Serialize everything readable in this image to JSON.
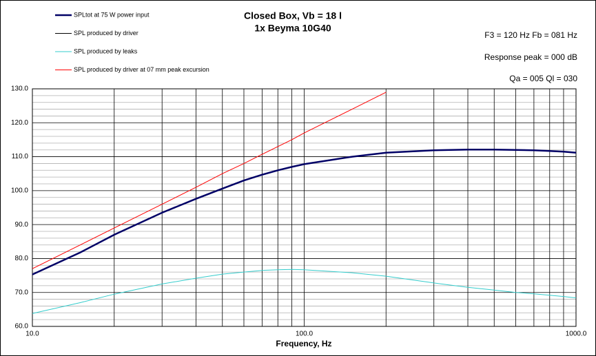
{
  "chart_data": {
    "type": "line",
    "title": "Closed Box, Vb = 18 l",
    "subtitle": "1x Beyma 10G40",
    "annotations": [
      "F3 = 120 Hz  Fb = 081 Hz",
      "Response peak = 000 dB",
      "Qa = 005  Ql = 030"
    ],
    "xlabel": "Frequency, Hz",
    "log_x": true,
    "grid": true,
    "x": [
      10,
      15,
      20,
      30,
      40,
      50,
      60,
      70,
      80,
      90,
      100,
      150,
      200,
      300,
      400,
      500,
      600,
      700,
      800,
      900,
      1000
    ],
    "series": [
      {
        "name": "SPLtot at 75 W power input",
        "color": "#000066",
        "values": [
          75.3,
          81.8,
          87,
          93.5,
          97.6,
          100.6,
          103,
          104.7,
          106,
          107,
          107.8,
          110,
          111.2,
          111.9,
          112.1,
          112.1,
          112,
          111.9,
          111.7,
          111.5,
          111.2
        ]
      },
      {
        "name": "SPL produced by driver",
        "color": "#000000",
        "values": [
          75.3,
          81.8,
          87,
          93.5,
          97.6,
          100.6,
          103,
          104.7,
          106,
          107,
          107.8,
          110,
          111.2,
          111.9,
          112.1,
          112.1,
          112,
          111.9,
          111.7,
          111.5,
          111.2
        ]
      },
      {
        "name": "SPL produced by leaks",
        "color": "#33cccc",
        "values": [
          63.8,
          67,
          69.5,
          72.5,
          74.2,
          75.4,
          76,
          76.5,
          76.7,
          76.8,
          76.7,
          75.8,
          74.8,
          72.8,
          71.5,
          70.7,
          70,
          69.6,
          69.2,
          68.8,
          68.4
        ]
      },
      {
        "name": "SPL produced by driver at 07 mm peak excursion",
        "color": "#ff0000",
        "values": [
          77,
          84,
          89,
          96,
          101,
          105,
          108,
          110.7,
          113,
          115,
          117,
          124,
          129,
          null,
          null,
          null,
          null,
          null,
          null,
          null,
          null
        ]
      }
    ],
    "xlim": [
      10,
      1000
    ],
    "ylim": [
      60,
      130
    ],
    "xticks": [
      {
        "value": 10,
        "label": "10.0"
      },
      {
        "value": 100,
        "label": "100.0"
      },
      {
        "value": 1000,
        "label": "1000.0"
      }
    ],
    "yticks": [
      {
        "value": 60,
        "label": "60.0"
      },
      {
        "value": 70,
        "label": "70.0"
      },
      {
        "value": 80,
        "label": "80.0"
      },
      {
        "value": 90,
        "label": "90.0"
      },
      {
        "value": 100,
        "label": "100.0"
      },
      {
        "value": 110,
        "label": "110.0"
      },
      {
        "value": 120,
        "label": "120.0"
      },
      {
        "value": 130,
        "label": "130.0"
      }
    ],
    "xgrid_minor": [
      20,
      30,
      40,
      50,
      60,
      70,
      80,
      90,
      200,
      300,
      400,
      500,
      600,
      700,
      800,
      900
    ],
    "ygrid_minor": [
      62,
      64,
      66,
      68,
      72,
      74,
      76,
      78,
      82,
      84,
      86,
      88,
      92,
      94,
      96,
      98,
      102,
      104,
      106,
      108,
      112,
      114,
      116,
      118,
      122,
      124,
      126,
      128
    ]
  }
}
